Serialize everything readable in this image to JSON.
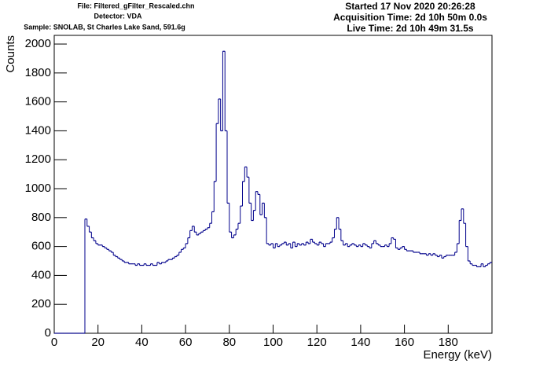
{
  "chart_data": {
    "type": "histogram",
    "header_left": [
      "File: Filtered_gFilter_Rescaled.chn",
      "Detector: VDA",
      "Sample: SNOLAB, St Charles Lake Sand, 591.6g"
    ],
    "header_right": [
      "Started 17 Nov 2020 20:26:28",
      "Acquisition Time: 2d 10h 50m 0.0s",
      "Live Time: 2d 10h 49m 31.5s"
    ],
    "x_label": "Energy (keV)",
    "y_label": "Counts",
    "color": "#00008b",
    "xlim": [
      0,
      200
    ],
    "ylim": [
      0,
      2060
    ],
    "xticks": [
      0,
      20,
      40,
      60,
      80,
      100,
      120,
      140,
      160,
      180
    ],
    "yticks": [
      0,
      200,
      400,
      600,
      800,
      1000,
      1200,
      1400,
      1600,
      1800,
      2000
    ],
    "bins": [
      0,
      1,
      2,
      3,
      4,
      5,
      6,
      7,
      8,
      9,
      10,
      11,
      12,
      13,
      14,
      15,
      16,
      17,
      18,
      19,
      20,
      21,
      22,
      23,
      24,
      25,
      26,
      27,
      28,
      29,
      30,
      31,
      32,
      33,
      34,
      35,
      36,
      37,
      38,
      39,
      40,
      41,
      42,
      43,
      44,
      45,
      46,
      47,
      48,
      49,
      50,
      51,
      52,
      53,
      54,
      55,
      56,
      57,
      58,
      59,
      60,
      61,
      62,
      63,
      64,
      65,
      66,
      67,
      68,
      69,
      70,
      71,
      72,
      73,
      74,
      75,
      76,
      77,
      78,
      79,
      80,
      81,
      82,
      83,
      84,
      85,
      86,
      87,
      88,
      89,
      90,
      91,
      92,
      93,
      94,
      95,
      96,
      97,
      98,
      99,
      100,
      101,
      102,
      103,
      104,
      105,
      106,
      107,
      108,
      109,
      110,
      111,
      112,
      113,
      114,
      115,
      116,
      117,
      118,
      119,
      120,
      121,
      122,
      123,
      124,
      125,
      126,
      127,
      128,
      129,
      130,
      131,
      132,
      133,
      134,
      135,
      136,
      137,
      138,
      139,
      140,
      141,
      142,
      143,
      144,
      145,
      146,
      147,
      148,
      149,
      150,
      151,
      152,
      153,
      154,
      155,
      156,
      157,
      158,
      159,
      160,
      161,
      162,
      163,
      164,
      165,
      166,
      167,
      168,
      169,
      170,
      171,
      172,
      173,
      174,
      175,
      176,
      177,
      178,
      179,
      180,
      181,
      182,
      183,
      184,
      185,
      186,
      187,
      188,
      189,
      190,
      191,
      192,
      193,
      194,
      195,
      196,
      197,
      198,
      199,
      200
    ],
    "counts": [
      0,
      0,
      0,
      0,
      0,
      0,
      0,
      0,
      0,
      0,
      0,
      0,
      0,
      0,
      790,
      740,
      700,
      660,
      640,
      620,
      610,
      610,
      600,
      590,
      580,
      570,
      560,
      540,
      530,
      520,
      510,
      500,
      490,
      490,
      480,
      480,
      480,
      470,
      480,
      470,
      470,
      480,
      470,
      470,
      480,
      470,
      470,
      490,
      480,
      490,
      490,
      500,
      510,
      510,
      520,
      530,
      540,
      560,
      580,
      590,
      620,
      660,
      710,
      740,
      700,
      680,
      690,
      700,
      710,
      720,
      730,
      760,
      840,
      1050,
      1450,
      1620,
      1400,
      1950,
      1400,
      900,
      700,
      660,
      680,
      720,
      760,
      880,
      1050,
      1150,
      1080,
      900,
      780,
      850,
      980,
      960,
      820,
      900,
      800,
      620,
      610,
      620,
      590,
      620,
      600,
      610,
      620,
      630,
      610,
      620,
      590,
      630,
      600,
      620,
      610,
      620,
      610,
      630,
      620,
      650,
      630,
      620,
      610,
      630,
      620,
      600,
      620,
      620,
      630,
      660,
      720,
      800,
      720,
      640,
      610,
      620,
      600,
      610,
      620,
      610,
      600,
      610,
      600,
      620,
      610,
      600,
      590,
      620,
      640,
      620,
      610,
      600,
      600,
      610,
      600,
      620,
      660,
      650,
      590,
      580,
      590,
      600,
      580,
      570,
      570,
      570,
      560,
      560,
      560,
      550,
      550,
      550,
      540,
      550,
      540,
      550,
      540,
      530,
      540,
      520,
      530,
      540,
      540,
      540,
      540,
      560,
      620,
      780,
      860,
      760,
      600,
      500,
      480,
      470,
      470,
      460,
      460,
      480,
      460,
      470,
      480,
      490
    ]
  }
}
